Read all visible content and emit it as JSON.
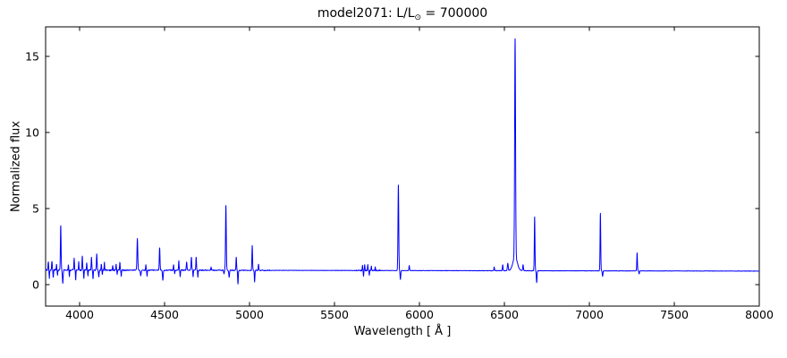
{
  "labels": {
    "title": {
      "prefix": "model2071: L/L",
      "sub": "⊙",
      "suffix": " = 700000"
    },
    "xlabel": "Wavelength [ Å ]",
    "ylabel": "Normalized flux"
  },
  "colors": {
    "line": "#0000ff",
    "frame": "#000000",
    "text": "#000000",
    "background": "#ffffff"
  },
  "chart_data": {
    "type": "line",
    "title": "model2071: L/L⊙ = 700000",
    "xlabel": "Wavelength [ Å ]",
    "ylabel": "Normalized flux",
    "xlim": [
      3800,
      8000
    ],
    "ylim": [
      -1.41,
      16.94
    ],
    "xticks": [
      4000,
      4500,
      5000,
      5500,
      6000,
      6500,
      7000,
      7500,
      8000
    ],
    "yticks": [
      0,
      5,
      10,
      15
    ],
    "grid": false,
    "legend": null,
    "line_color": "#0000ff",
    "continuum": {
      "start_flux": 0.96,
      "end_flux": 0.89
    },
    "sample_step": 2,
    "emission_lines": [
      {
        "wavelength": 3816,
        "peak_flux": 1.5,
        "sigma": 1.8
      },
      {
        "wavelength": 3837,
        "peak_flux": 1.55,
        "sigma": 1.8
      },
      {
        "wavelength": 3864,
        "peak_flux": 1.3,
        "sigma": 1.5
      },
      {
        "wavelength": 3889,
        "peak_flux": 3.85,
        "sigma": 2.0
      },
      {
        "wavelength": 3934,
        "peak_flux": 1.3,
        "sigma": 1.5
      },
      {
        "wavelength": 3968,
        "peak_flux": 1.7,
        "sigma": 1.8
      },
      {
        "wavelength": 3995,
        "peak_flux": 1.5,
        "sigma": 1.5
      },
      {
        "wavelength": 4016,
        "peak_flux": 1.85,
        "sigma": 1.8
      },
      {
        "wavelength": 4042,
        "peak_flux": 1.4,
        "sigma": 1.5
      },
      {
        "wavelength": 4070,
        "peak_flux": 1.8,
        "sigma": 1.8
      },
      {
        "wavelength": 4101,
        "peak_flux": 2.0,
        "sigma": 2.0
      },
      {
        "wavelength": 4128,
        "peak_flux": 1.35,
        "sigma": 1.5
      },
      {
        "wavelength": 4146,
        "peak_flux": 1.45,
        "sigma": 1.5
      },
      {
        "wavelength": 4195,
        "peak_flux": 1.25,
        "sigma": 1.5
      },
      {
        "wavelength": 4215,
        "peak_flux": 1.3,
        "sigma": 1.5
      },
      {
        "wavelength": 4237,
        "peak_flux": 1.45,
        "sigma": 1.6
      },
      {
        "wavelength": 4340,
        "peak_flux": 3.0,
        "sigma": 2.3
      },
      {
        "wavelength": 4390,
        "peak_flux": 1.3,
        "sigma": 1.5
      },
      {
        "wavelength": 4471,
        "peak_flux": 2.45,
        "sigma": 2.0
      },
      {
        "wavelength": 4553,
        "peak_flux": 1.3,
        "sigma": 1.5
      },
      {
        "wavelength": 4584,
        "peak_flux": 1.55,
        "sigma": 1.6
      },
      {
        "wavelength": 4630,
        "peak_flux": 1.5,
        "sigma": 2.0
      },
      {
        "wavelength": 4658,
        "peak_flux": 1.8,
        "sigma": 2.0
      },
      {
        "wavelength": 4686,
        "peak_flux": 1.8,
        "sigma": 1.8
      },
      {
        "wavelength": 4774,
        "peak_flux": 1.15,
        "sigma": 1.8
      },
      {
        "wavelength": 4861,
        "peak_flux": 5.2,
        "sigma": 2.2
      },
      {
        "wavelength": 4922,
        "peak_flux": 1.8,
        "sigma": 1.8
      },
      {
        "wavelength": 5016,
        "peak_flux": 2.55,
        "sigma": 1.9
      },
      {
        "wavelength": 5053,
        "peak_flux": 1.35,
        "sigma": 1.6
      },
      {
        "wavelength": 5665,
        "peak_flux": 1.25,
        "sigma": 1.6
      },
      {
        "wavelength": 5678,
        "peak_flux": 1.3,
        "sigma": 1.5
      },
      {
        "wavelength": 5696,
        "peak_flux": 1.3,
        "sigma": 1.6
      },
      {
        "wavelength": 5717,
        "peak_flux": 1.2,
        "sigma": 1.5
      },
      {
        "wavelength": 5740,
        "peak_flux": 1.15,
        "sigma": 1.5
      },
      {
        "wavelength": 5876,
        "peak_flux": 6.55,
        "sigma": 2.2
      },
      {
        "wavelength": 5940,
        "peak_flux": 1.25,
        "sigma": 1.8
      },
      {
        "wavelength": 6440,
        "peak_flux": 1.15,
        "sigma": 1.8
      },
      {
        "wavelength": 6490,
        "peak_flux": 1.3,
        "sigma": 1.8
      },
      {
        "wavelength": 6520,
        "peak_flux": 1.4,
        "sigma": 2.5
      },
      {
        "wavelength": 6563,
        "peak_flux": 15.3,
        "sigma": 2.6,
        "wing_amp": 0.9,
        "wing_sigma": 13
      },
      {
        "wavelength": 6610,
        "peak_flux": 1.3,
        "sigma": 2.0
      },
      {
        "wavelength": 6678,
        "peak_flux": 4.45,
        "sigma": 1.9
      },
      {
        "wavelength": 7065,
        "peak_flux": 4.7,
        "sigma": 1.9
      },
      {
        "wavelength": 7281,
        "peak_flux": 2.1,
        "sigma": 1.8
      }
    ],
    "absorption_lines": [
      {
        "wavelength": 3822,
        "min_flux": 0.45,
        "sigma": 1.5
      },
      {
        "wavelength": 3845,
        "min_flux": 0.45,
        "sigma": 1.5
      },
      {
        "wavelength": 3870,
        "min_flux": 0.65,
        "sigma": 1.5
      },
      {
        "wavelength": 3901,
        "min_flux": 0.12,
        "sigma": 2.2
      },
      {
        "wavelength": 3940,
        "min_flux": 0.55,
        "sigma": 1.5
      },
      {
        "wavelength": 3977,
        "min_flux": 0.35,
        "sigma": 1.5
      },
      {
        "wavelength": 4025,
        "min_flux": 0.4,
        "sigma": 1.5
      },
      {
        "wavelength": 4049,
        "min_flux": 0.6,
        "sigma": 1.5
      },
      {
        "wavelength": 4079,
        "min_flux": 0.35,
        "sigma": 1.5
      },
      {
        "wavelength": 4113,
        "min_flux": 0.5,
        "sigma": 1.8
      },
      {
        "wavelength": 4134,
        "min_flux": 0.7,
        "sigma": 1.5
      },
      {
        "wavelength": 4221,
        "min_flux": 0.7,
        "sigma": 1.5
      },
      {
        "wavelength": 4245,
        "min_flux": 0.55,
        "sigma": 1.5
      },
      {
        "wavelength": 4360,
        "min_flux": 0.6,
        "sigma": 2.5
      },
      {
        "wavelength": 4397,
        "min_flux": 0.55,
        "sigma": 1.5
      },
      {
        "wavelength": 4490,
        "min_flux": 0.3,
        "sigma": 2.2
      },
      {
        "wavelength": 4560,
        "min_flux": 0.75,
        "sigma": 1.5
      },
      {
        "wavelength": 4592,
        "min_flux": 0.5,
        "sigma": 1.5
      },
      {
        "wavelength": 4668,
        "min_flux": 0.55,
        "sigma": 1.5
      },
      {
        "wavelength": 4696,
        "min_flux": 0.5,
        "sigma": 1.5
      },
      {
        "wavelength": 4850,
        "min_flux": 0.7,
        "sigma": 2.0
      },
      {
        "wavelength": 4880,
        "min_flux": 0.5,
        "sigma": 2.2
      },
      {
        "wavelength": 4932,
        "min_flux": 0.05,
        "sigma": 1.8
      },
      {
        "wavelength": 5030,
        "min_flux": 0.2,
        "sigma": 1.8
      },
      {
        "wavelength": 5671,
        "min_flux": 0.55,
        "sigma": 1.4
      },
      {
        "wavelength": 5705,
        "min_flux": 0.6,
        "sigma": 1.4
      },
      {
        "wavelength": 5888,
        "min_flux": 0.35,
        "sigma": 2.0
      },
      {
        "wavelength": 6690,
        "min_flux": 0.15,
        "sigma": 2.0
      },
      {
        "wavelength": 7078,
        "min_flux": 0.55,
        "sigma": 2.0
      },
      {
        "wavelength": 7293,
        "min_flux": 0.7,
        "sigma": 1.8
      }
    ],
    "noise_regions": [
      {
        "from": 3800,
        "to": 4260,
        "amp": 0.05
      },
      {
        "from": 4260,
        "to": 4540,
        "amp": 0.03
      },
      {
        "from": 4540,
        "to": 4760,
        "amp": 0.035
      },
      {
        "from": 4760,
        "to": 5120,
        "amp": 0.03
      },
      {
        "from": 5120,
        "to": 5630,
        "amp": 0.012
      },
      {
        "from": 5630,
        "to": 5770,
        "amp": 0.04
      },
      {
        "from": 5770,
        "to": 6420,
        "amp": 0.012
      },
      {
        "from": 6420,
        "to": 6720,
        "amp": 0.018
      },
      {
        "from": 6720,
        "to": 8000,
        "amp": 0.013
      }
    ]
  }
}
